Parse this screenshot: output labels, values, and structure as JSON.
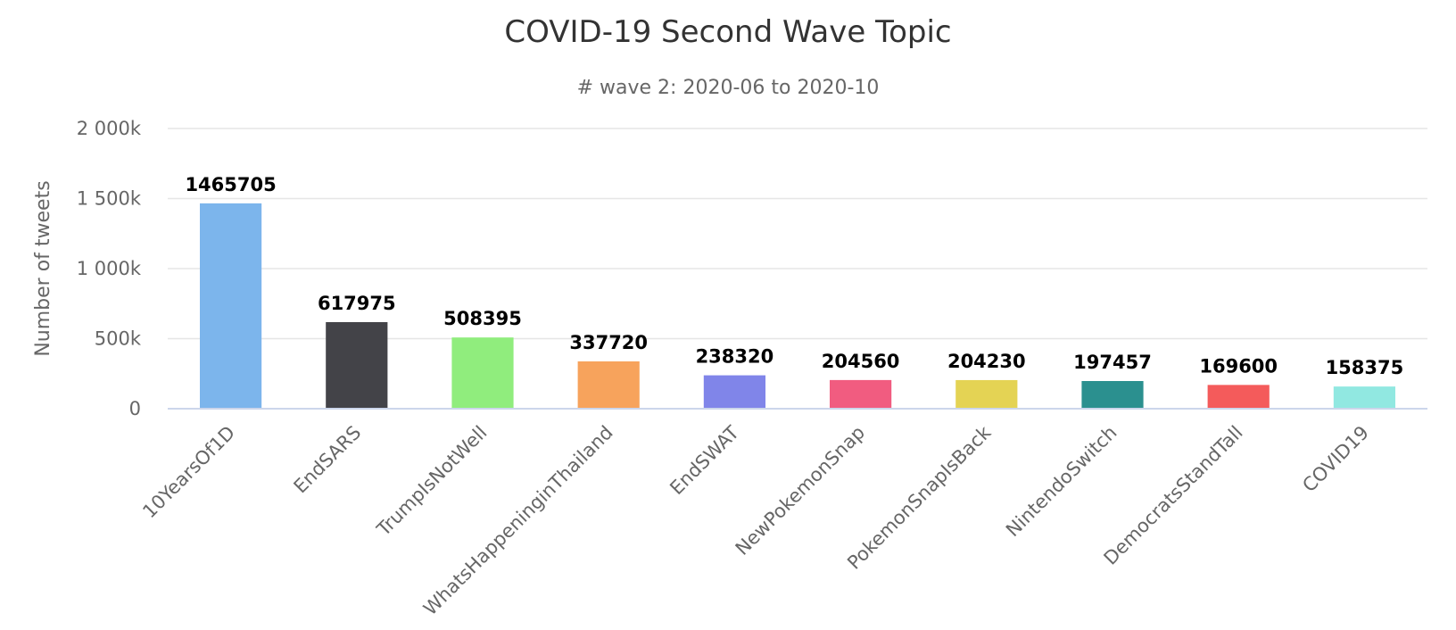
{
  "chart_data": {
    "type": "bar",
    "title": "COVID-19 Second Wave Topic",
    "subtitle": "# wave 2: 2020-06 to 2020-10",
    "ylabel": "Number of tweets",
    "xlabel": "",
    "ylim": [
      0,
      2000000
    ],
    "yticks": [
      0,
      500000,
      1000000,
      1500000,
      2000000
    ],
    "ytick_labels": [
      "0",
      "500k",
      "1 000k",
      "1 500k",
      "2 000k"
    ],
    "grid": true,
    "legend": "none",
    "categories": [
      "10YearsOf1D",
      "EndSARS",
      "TrumpIsNotWell",
      "WhatsHappeninginThailand",
      "EndSWAT",
      "NewPokemonSnap",
      "PokemonSnapIsBack",
      "NintendoSwitch",
      "DemocratsStandTall",
      "COVID19"
    ],
    "values": [
      1465705,
      617975,
      508395,
      337720,
      238320,
      204560,
      204230,
      197457,
      169600,
      158375
    ],
    "data_labels": [
      "1465705",
      "617975",
      "508395",
      "337720",
      "238320",
      "204560",
      "204230",
      "197457",
      "169600",
      "158375"
    ],
    "colors": [
      "#7cb5ec",
      "#434348",
      "#90ed7d",
      "#f7a35c",
      "#8085e9",
      "#f15c80",
      "#e4d354",
      "#2b908f",
      "#f45b5b",
      "#91e8e1"
    ]
  }
}
